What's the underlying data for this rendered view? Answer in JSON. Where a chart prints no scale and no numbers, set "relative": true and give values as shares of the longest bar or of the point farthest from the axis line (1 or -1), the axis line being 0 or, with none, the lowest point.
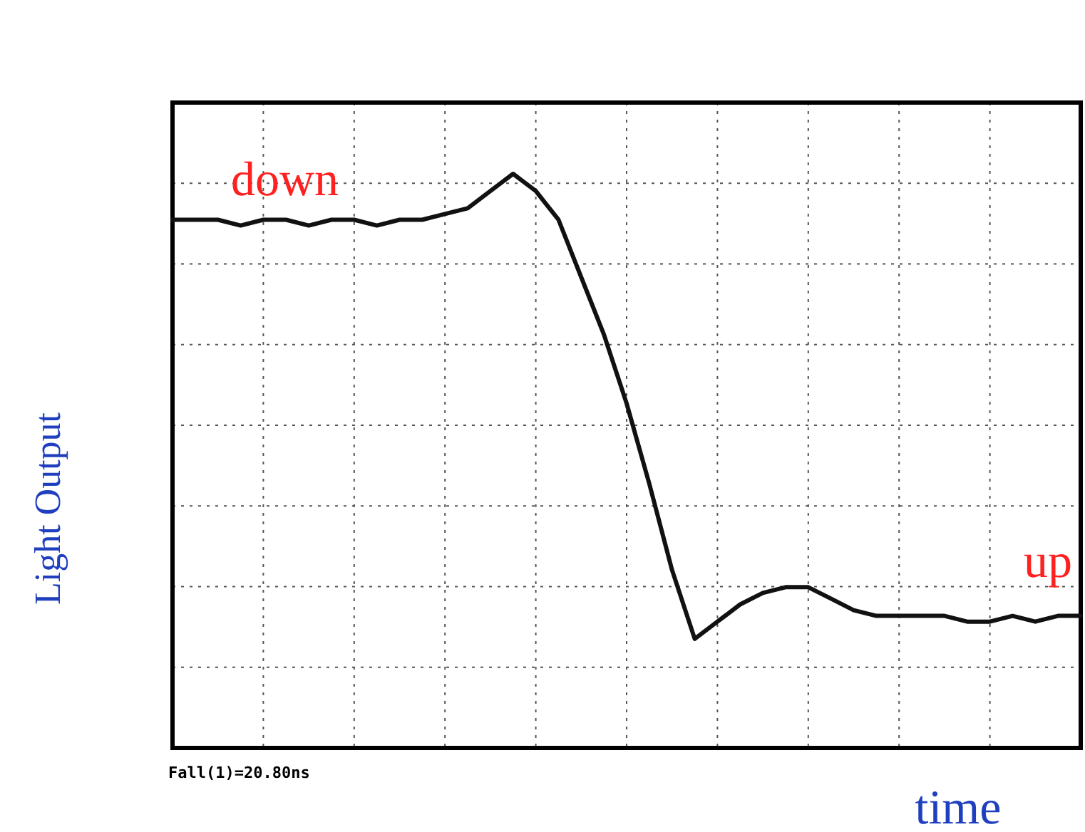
{
  "chart_data": {
    "type": "line",
    "relative": true,
    "xlabel": "time",
    "ylabel": "Light Output",
    "grid": true,
    "marker": "none",
    "line_style": "solid",
    "categories": [
      null,
      null,
      null,
      null,
      null,
      null,
      null,
      null,
      null,
      null,
      null,
      null,
      null,
      null,
      null,
      null,
      null,
      null,
      null,
      null,
      null,
      null,
      null,
      null,
      null,
      null,
      null,
      null,
      null,
      null,
      null,
      null,
      null,
      null,
      null,
      null,
      null,
      null,
      null,
      null,
      null
    ],
    "series": [
      {
        "color": "#111111",
        "values": [
          0.92,
          0.92,
          0.92,
          0.91,
          0.92,
          0.92,
          0.91,
          0.92,
          0.92,
          0.91,
          0.92,
          0.92,
          0.93,
          0.94,
          0.97,
          1.0,
          0.97,
          0.92,
          0.82,
          0.72,
          0.6,
          0.46,
          0.31,
          0.19,
          0.22,
          0.25,
          0.27,
          0.28,
          0.28,
          0.26,
          0.24,
          0.23,
          0.23,
          0.23,
          0.23,
          0.22,
          0.22,
          0.23,
          0.22,
          0.23,
          0.23
        ]
      }
    ],
    "annotations": [
      "down",
      "up",
      "Fall(1)=20.80ns"
    ]
  }
}
